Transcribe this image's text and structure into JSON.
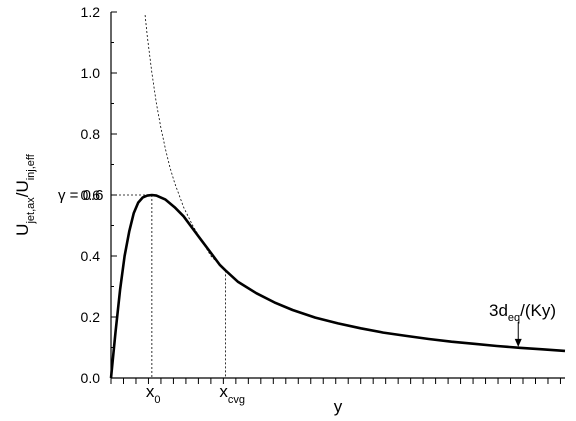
{
  "chart_data": {
    "type": "line",
    "title": "",
    "xlabel": "y",
    "ylabel": {
      "main_1": "U",
      "sub_1": "jet,ax",
      "sep": "/U",
      "sub_2": "inj,eff"
    },
    "xlim": [
      0,
      1.0
    ],
    "ylim": [
      0,
      1.2
    ],
    "yticks": [
      0.0,
      0.2,
      0.4,
      0.6,
      0.8,
      1.0,
      1.2
    ],
    "ytick_labels": [
      "0.0",
      "0.2",
      "0.4",
      "0.6",
      "0.8",
      "1.0",
      "1.2"
    ],
    "x_minor_tick_step": 0.0275,
    "x_tick_labels": [
      {
        "main": "x",
        "sub": "0",
        "x": 0.09
      },
      {
        "main": "x",
        "sub": "cvg",
        "x": 0.252
      }
    ],
    "gamma_label": {
      "text": "γ = 0.6",
      "value": 0.6
    },
    "annotation": {
      "prefix": "3d",
      "sub": "eq",
      "suffix": "/(Ky)",
      "arrow_to": {
        "x": 0.897,
        "y": 0.102
      }
    },
    "series": [
      {
        "style": "solid",
        "x": [
          0.0,
          0.01,
          0.02,
          0.03,
          0.04,
          0.05,
          0.06,
          0.07,
          0.08,
          0.09,
          0.1,
          0.12,
          0.14,
          0.16,
          0.18,
          0.2,
          0.22,
          0.24,
          0.252,
          0.28,
          0.32,
          0.36,
          0.4,
          0.45,
          0.5,
          0.55,
          0.6,
          0.65,
          0.7,
          0.75,
          0.8,
          0.85,
          0.9,
          0.95,
          1.0
        ],
        "y": [
          0.0,
          0.15,
          0.29,
          0.4,
          0.48,
          0.54,
          0.575,
          0.592,
          0.598,
          0.6,
          0.598,
          0.585,
          0.56,
          0.53,
          0.49,
          0.45,
          0.41,
          0.37,
          0.353,
          0.315,
          0.278,
          0.248,
          0.223,
          0.198,
          0.179,
          0.163,
          0.149,
          0.138,
          0.128,
          0.119,
          0.112,
          0.105,
          0.099,
          0.094,
          0.089
        ]
      },
      {
        "style": "dashed",
        "x": [
          0.075,
          0.08,
          0.09,
          0.1,
          0.11,
          0.12,
          0.13,
          0.14,
          0.15,
          0.16,
          0.18,
          0.2,
          0.22,
          0.252
        ],
        "y": [
          1.19,
          1.12,
          1.0,
          0.9,
          0.82,
          0.75,
          0.69,
          0.64,
          0.6,
          0.56,
          0.5,
          0.45,
          0.4,
          0.353
        ]
      }
    ],
    "guides": [
      {
        "from": {
          "x": 0.0,
          "y": 0.6
        },
        "to": {
          "x": 0.09,
          "y": 0.6
        }
      },
      {
        "from": {
          "x": 0.09,
          "y": 0.6
        },
        "to": {
          "x": 0.09,
          "y": 0.0
        }
      },
      {
        "from": {
          "x": 0.252,
          "y": 0.353
        },
        "to": {
          "x": 0.252,
          "y": 0.0
        }
      }
    ],
    "grid": false,
    "legend": "none"
  }
}
